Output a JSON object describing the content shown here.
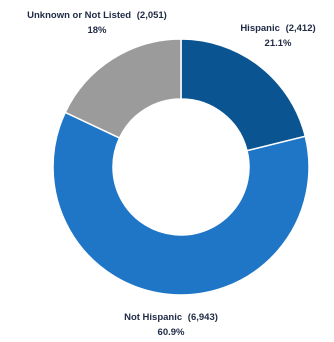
{
  "chart_data": {
    "type": "pie",
    "donut": true,
    "slices": [
      {
        "category": "Hispanic",
        "count_label": "(2,412)",
        "percent_label": "21.1%",
        "value": 2412,
        "percent": 21.1,
        "color": "#0a5591"
      },
      {
        "category": "Not Hispanic",
        "count_label": "(6,943)",
        "percent_label": "60.9%",
        "value": 6943,
        "percent": 60.9,
        "color": "#1f76c6"
      },
      {
        "category": "Unknown or Not Listed",
        "count_label": "(2,051)",
        "percent_label": "18%",
        "value": 2051,
        "percent": 18,
        "color": "#9b9b9b"
      }
    ]
  }
}
